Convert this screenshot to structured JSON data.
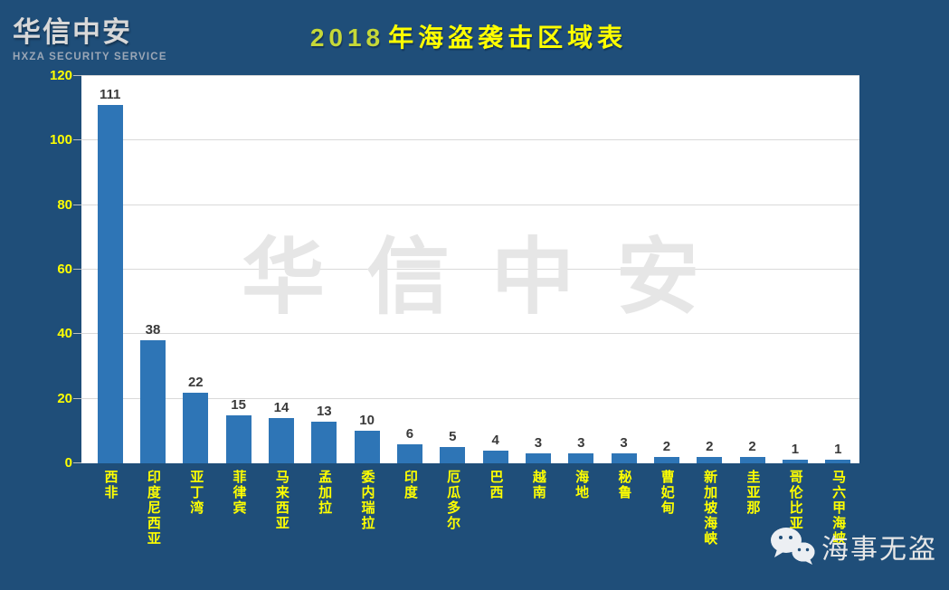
{
  "logo": {
    "title": "华信中安",
    "subtitle": "HXZA SECURITY SERVICE"
  },
  "title": {
    "year": "2018",
    "text": "年海盗袭击区域表"
  },
  "watermark": "华信中安",
  "footer": {
    "wechat_icon": "wechat-icon",
    "wechat_label": "海事无盗"
  },
  "colors": {
    "background": "#1F4E79",
    "bar": "#2E75B6",
    "axis_label_yellow": "#FFFF00",
    "title_year_green": "#C6D838",
    "title_yellow": "#FFFF00",
    "watermark_gray": "#E6E6E6",
    "gridline": "#D9D9D9",
    "value_label": "#3A3A3A",
    "logo_text": "#D8D8D8",
    "logo_subtext": "#9BA7B6",
    "footer_text": "#E6E6E6",
    "plot_background": "#FFFFFF"
  },
  "chart_data": {
    "type": "bar",
    "title": "2018年海盗袭击区域表",
    "categories": [
      "西非",
      "印度尼西亚",
      "亚丁湾",
      "菲律宾",
      "马来西亚",
      "孟加拉",
      "委内瑞拉",
      "印度",
      "厄瓜多尔",
      "巴西",
      "越南",
      "海地",
      "秘鲁",
      "曹妃甸",
      "新加坡海峡",
      "圭亚那",
      "哥伦比亚",
      "马六甲海峡"
    ],
    "values": [
      111,
      38,
      22,
      15,
      14,
      13,
      10,
      6,
      5,
      4,
      3,
      3,
      3,
      2,
      2,
      2,
      1,
      1
    ],
    "xlabel": "",
    "ylabel": "",
    "ylim": [
      0,
      120
    ],
    "yticks": [
      0,
      20,
      40,
      60,
      80,
      100,
      120
    ],
    "grid": true,
    "legend": "none",
    "bar_color": "#2E75B6",
    "data_labels": true
  }
}
